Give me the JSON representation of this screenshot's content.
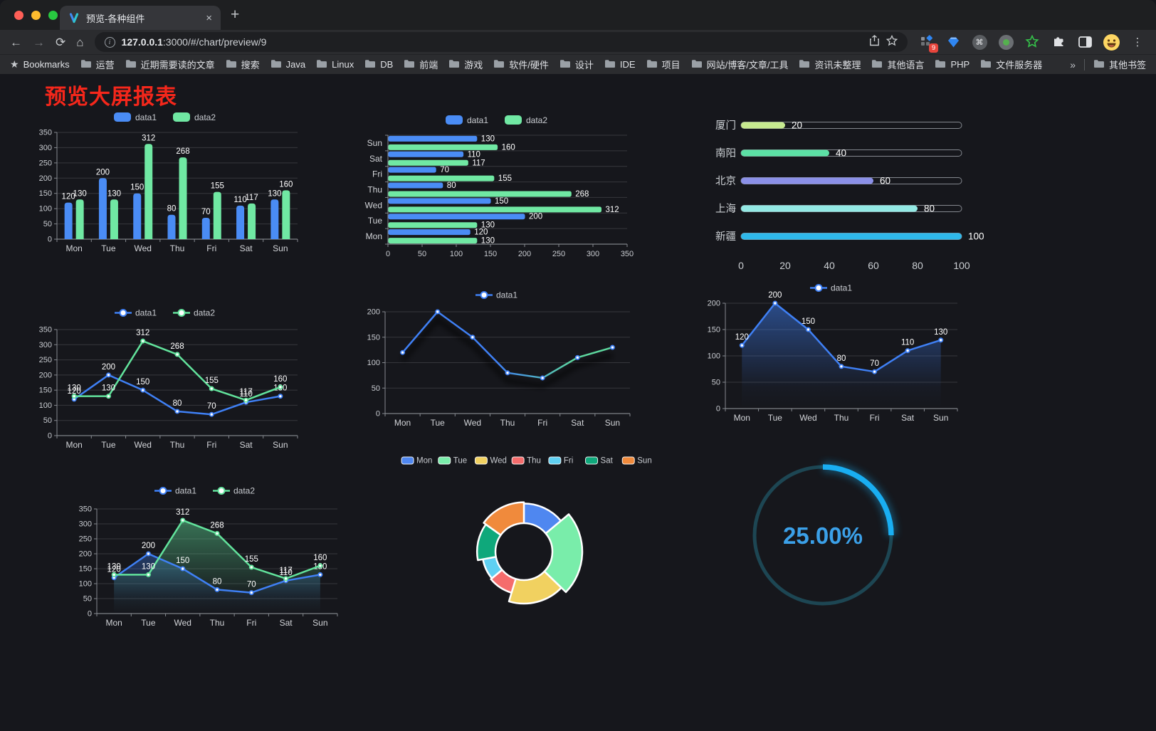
{
  "browser": {
    "traffic_lights": {
      "close": "#ff5f57",
      "minimize": "#febc2e",
      "zoom": "#28c840"
    },
    "tab": {
      "title": "预览-各种组件",
      "close_glyph": "×",
      "new_tab_glyph": "+"
    },
    "url": {
      "host": "127.0.0.1",
      "path": ":3000/#/chart/preview/9"
    },
    "extensions_badge": "9",
    "bookmarks": {
      "first": "Bookmarks",
      "folders": [
        "运营",
        "近期需要读的文章",
        "搜索",
        "Java",
        "Linux",
        "DB",
        "前端",
        "游戏",
        "软件/硬件",
        "设计",
        "IDE",
        "项目",
        "网站/博客/文章/工具",
        "资讯未整理",
        "其他语言",
        "PHP",
        "文件服务器"
      ],
      "overflow": "»",
      "other": "其他书签"
    }
  },
  "page": {
    "title": "预览大屏报表",
    "title_color": "#f5271b",
    "background": "#16171c"
  },
  "chart_data": [
    {
      "id": "grouped-bar",
      "type": "bar",
      "categories": [
        "Mon",
        "Tue",
        "Wed",
        "Thu",
        "Fri",
        "Sat",
        "Sun"
      ],
      "series": [
        {
          "name": "data1",
          "color": "#4a8cf5",
          "values": [
            120,
            200,
            150,
            80,
            70,
            110,
            130
          ]
        },
        {
          "name": "data2",
          "color": "#70e8a3",
          "values": [
            130,
            130,
            312,
            268,
            155,
            117,
            160
          ]
        }
      ],
      "ylim": [
        0,
        350
      ],
      "ytick_step": 50,
      "legend_position": "top",
      "grid": true,
      "labels": true
    },
    {
      "id": "horizontal-bar",
      "type": "bar-horizontal",
      "categories": [
        "Mon",
        "Tue",
        "Wed",
        "Thu",
        "Fri",
        "Sat",
        "Sun"
      ],
      "series": [
        {
          "name": "data1",
          "color": "#4a8cf5",
          "values": [
            120,
            200,
            150,
            80,
            70,
            110,
            130
          ]
        },
        {
          "name": "data2",
          "color": "#70e8a3",
          "values": [
            130,
            130,
            312,
            268,
            155,
            117,
            160
          ]
        }
      ],
      "xlim": [
        0,
        350
      ],
      "xtick_step": 50,
      "legend_position": "top",
      "labels": true
    },
    {
      "id": "city-progress",
      "type": "progress",
      "items": [
        {
          "label": "厦门",
          "value": 20,
          "color": "#c6e98f"
        },
        {
          "label": "南阳",
          "value": 40,
          "color": "#5ce0a5"
        },
        {
          "label": "北京",
          "value": 60,
          "color": "#8b90e8"
        },
        {
          "label": "上海",
          "value": 80,
          "color": "#93e9e4"
        },
        {
          "label": "新疆",
          "value": 100,
          "color": "#2fb8ea"
        }
      ],
      "xlim": [
        0,
        100
      ],
      "xticks": [
        0,
        20,
        40,
        60,
        80,
        100
      ]
    },
    {
      "id": "line-two-series",
      "type": "line",
      "categories": [
        "Mon",
        "Tue",
        "Wed",
        "Thu",
        "Fri",
        "Sat",
        "Sun"
      ],
      "series": [
        {
          "name": "data1",
          "color": "#3f80f5",
          "values": [
            120,
            200,
            150,
            80,
            70,
            110,
            130
          ]
        },
        {
          "name": "data2",
          "color": "#62e39c",
          "values": [
            130,
            130,
            312,
            268,
            155,
            117,
            160
          ]
        }
      ],
      "ylim": [
        0,
        350
      ],
      "ytick_step": 50,
      "legend_position": "top",
      "labels": true
    },
    {
      "id": "gradient-line",
      "type": "line",
      "categories": [
        "Mon",
        "Tue",
        "Wed",
        "Thu",
        "Fri",
        "Sat",
        "Sun"
      ],
      "series": [
        {
          "name": "data1",
          "color": "#3f80f5",
          "gradient": [
            "#3f80f5",
            "#5dd89e"
          ],
          "values": [
            120,
            200,
            150,
            80,
            70,
            110,
            130
          ]
        }
      ],
      "ylim": [
        0,
        200
      ],
      "ytick_step": 50,
      "legend_position": "top",
      "labels": false,
      "shadow": true
    },
    {
      "id": "area-line",
      "type": "line",
      "categories": [
        "Mon",
        "Tue",
        "Wed",
        "Thu",
        "Fri",
        "Sat",
        "Sun"
      ],
      "series": [
        {
          "name": "data1",
          "color": "#3f80f5",
          "area": true,
          "area_opacity": 0.5,
          "values": [
            120,
            200,
            150,
            80,
            70,
            110,
            130
          ]
        }
      ],
      "ylim": [
        0,
        200
      ],
      "ytick_step": 50,
      "legend_position": "top",
      "labels": true
    },
    {
      "id": "two-area-line",
      "type": "line",
      "categories": [
        "Mon",
        "Tue",
        "Wed",
        "Thu",
        "Fri",
        "Sat",
        "Sun"
      ],
      "series": [
        {
          "name": "data1",
          "color": "#3f80f5",
          "area": true,
          "area_opacity": 0.35,
          "values": [
            120,
            200,
            150,
            80,
            70,
            110,
            130
          ]
        },
        {
          "name": "data2",
          "color": "#62e39c",
          "area": true,
          "area_opacity": 0.45,
          "values": [
            130,
            130,
            312,
            268,
            155,
            117,
            160
          ]
        }
      ],
      "ylim": [
        0,
        350
      ],
      "ytick_step": 50,
      "legend_position": "top",
      "labels": true
    },
    {
      "id": "rose-pie",
      "type": "pie-rose",
      "categories": [
        "Mon",
        "Tue",
        "Wed",
        "Thu",
        "Fri",
        "Sat",
        "Sun"
      ],
      "values": [
        120,
        200,
        150,
        80,
        70,
        110,
        130
      ],
      "colors": [
        "#4f87f0",
        "#79edaa",
        "#f1d160",
        "#f56c6c",
        "#5fd0f2",
        "#0fa87b",
        "#f08a3c"
      ],
      "legend_position": "top",
      "border_color": "#ffffff"
    },
    {
      "id": "gauge",
      "type": "gauge",
      "value": 25,
      "max": 100,
      "display": "25.00%",
      "color": "#19aef2",
      "track_color": "#1d4653",
      "text_color": "#3ba0e8"
    }
  ]
}
